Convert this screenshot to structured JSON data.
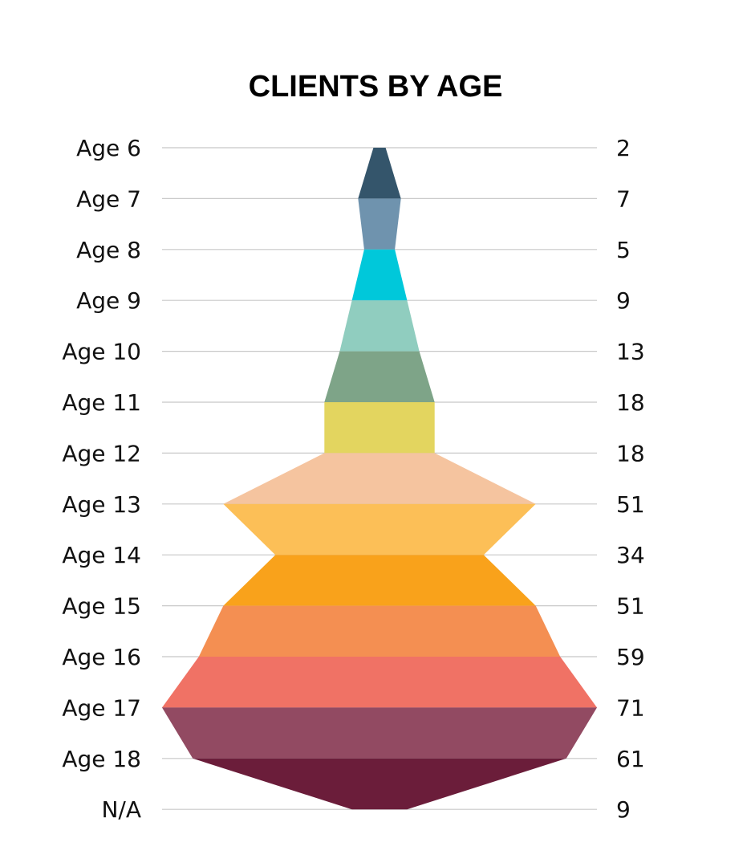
{
  "chart_data": {
    "type": "area",
    "title": "CLIENTS BY AGE",
    "categories": [
      "Age 6",
      "Age 7",
      "Age 8",
      "Age 9",
      "Age 10",
      "Age 11",
      "Age 12",
      "Age 13",
      "Age 14",
      "Age 15",
      "Age 16",
      "Age 17",
      "Age 18",
      "N/A"
    ],
    "values": [
      2,
      7,
      5,
      9,
      13,
      18,
      18,
      51,
      34,
      51,
      59,
      71,
      61,
      9
    ],
    "value_labels": [
      "2",
      "7",
      "5",
      "9",
      "13",
      "18",
      "18",
      "51",
      "34",
      "51",
      "59",
      "71",
      "61",
      "9"
    ],
    "colors": [
      "#34556b",
      "#6f93ae",
      "#00c8da",
      "#90cdbf",
      "#7ea488",
      "#e3d55f",
      "#f5c49f",
      "#fcbf57",
      "#f9a21b",
      "#f48f52",
      "#f07265",
      "#924a62",
      "#6b1d3a"
    ],
    "grid": true,
    "legend": "none",
    "xlabel": "",
    "ylabel": ""
  }
}
